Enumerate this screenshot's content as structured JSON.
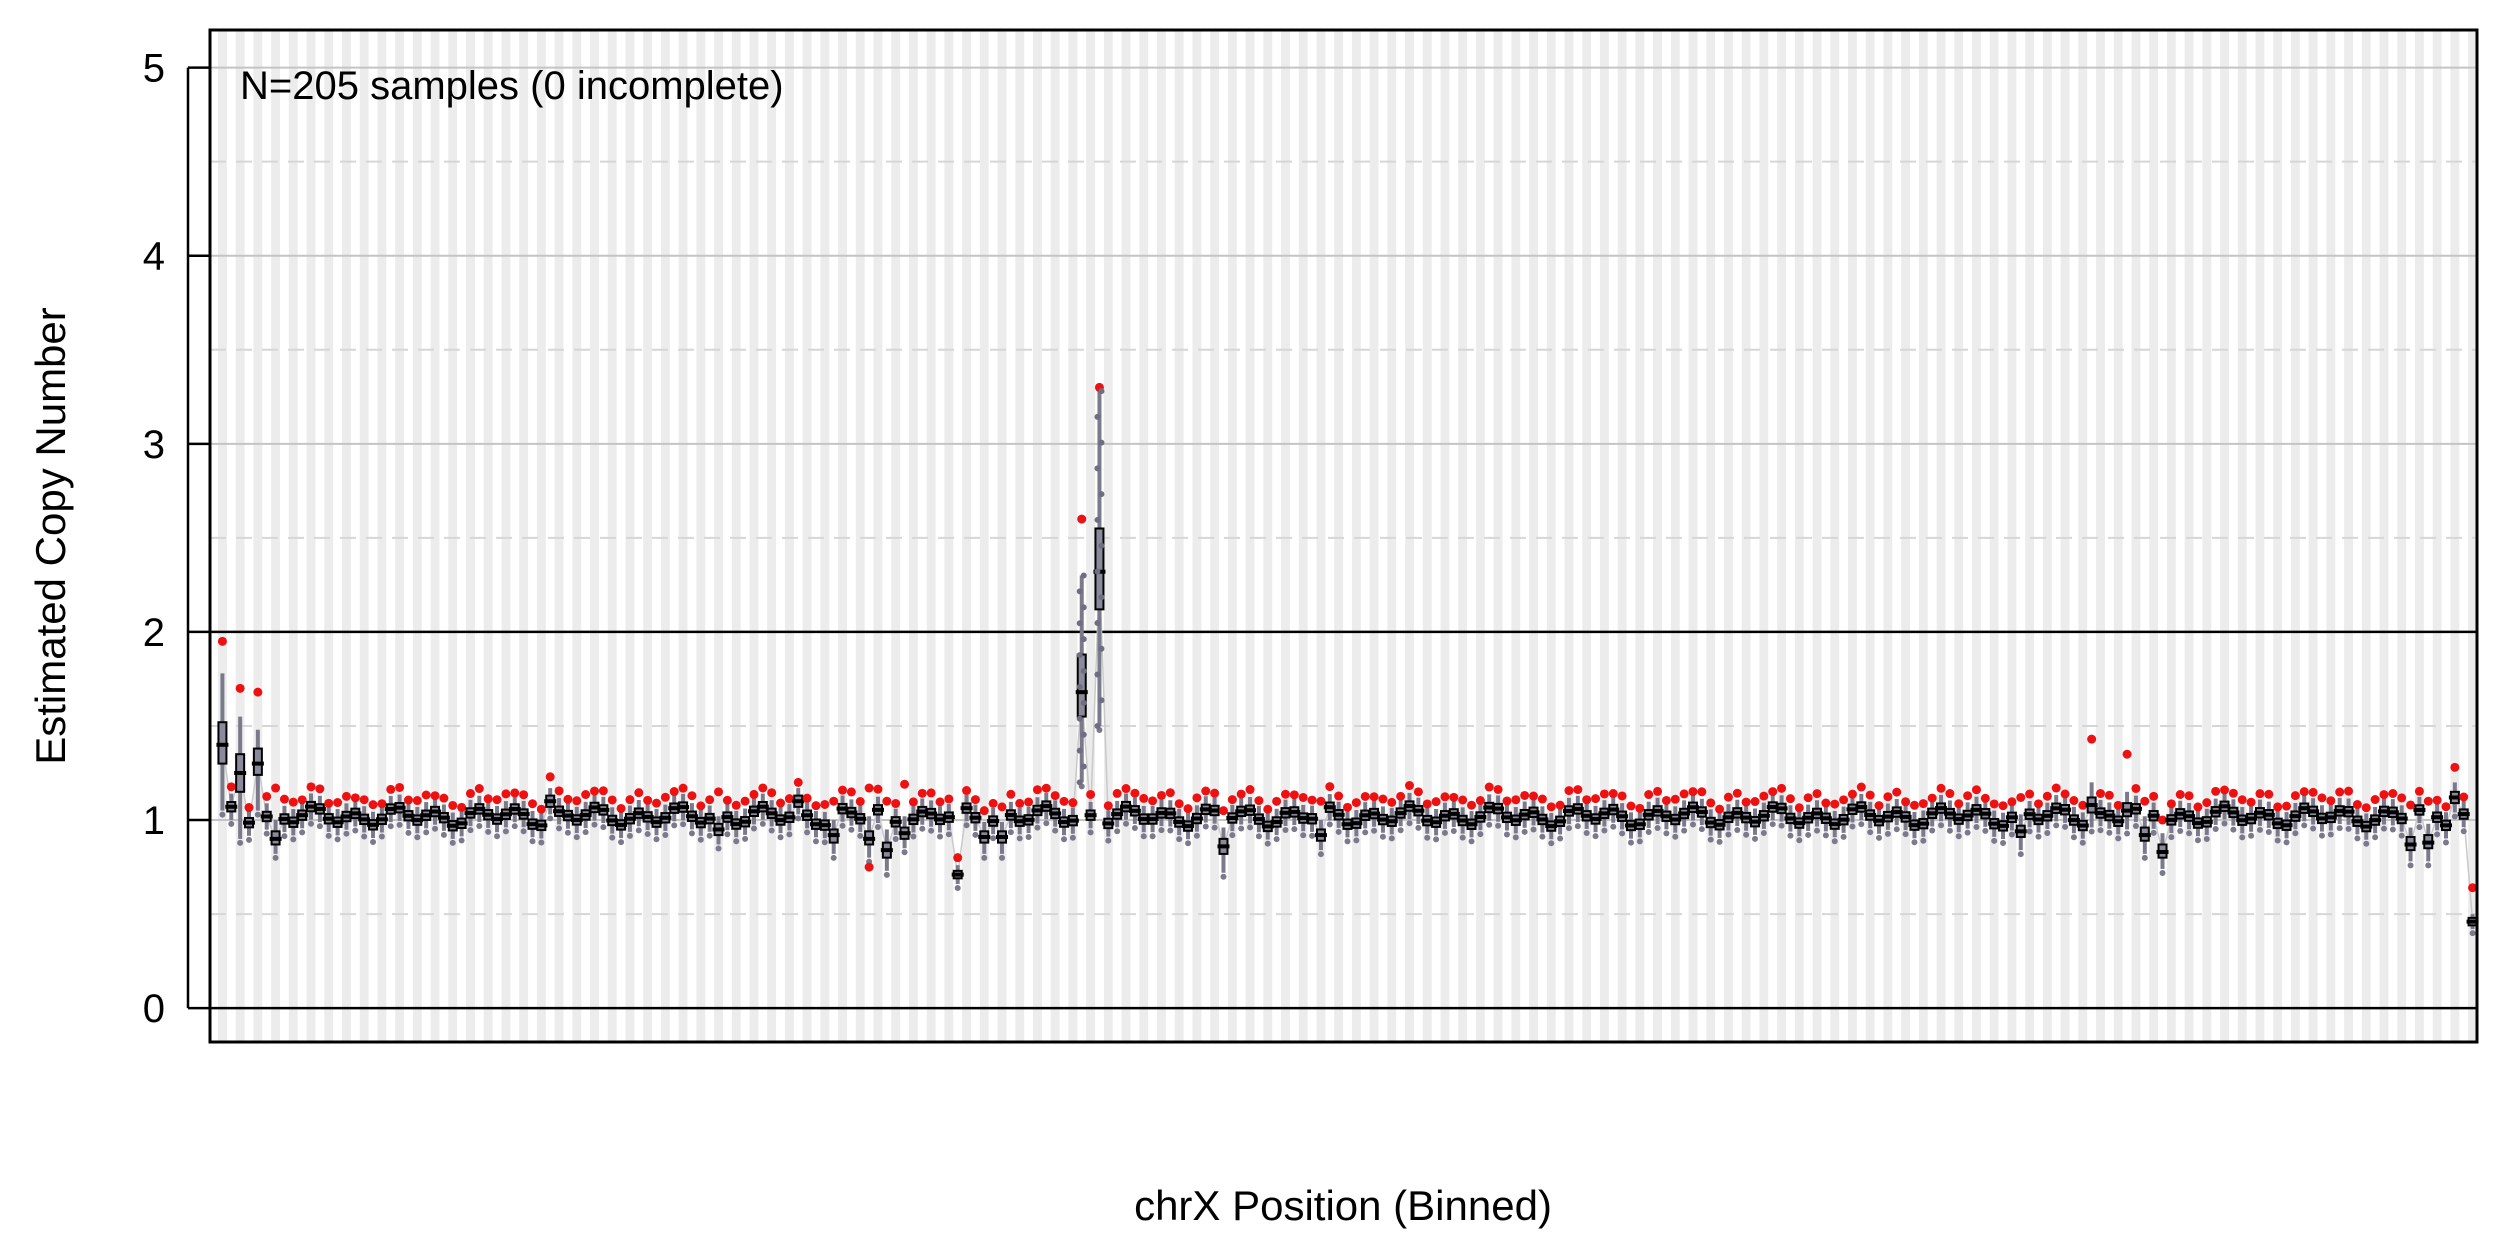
{
  "chart_data": {
    "type": "box",
    "title": "",
    "annotation": "N=205 samples (0 incomplete)",
    "xlabel": "chrX Position (Binned)",
    "ylabel": "Estimated Copy Number",
    "ylim": [
      -0.18,
      5.2
    ],
    "yticks": [
      0,
      1,
      2,
      3,
      4,
      5
    ],
    "reference_lines": [
      0,
      2
    ],
    "minor_gridlines": [
      0.5,
      1.5,
      2.5,
      3.5,
      4.5
    ],
    "n_bins": 255,
    "bins": [
      {
        "i": 0,
        "median": 1.4,
        "q1": 1.3,
        "q3": 1.52,
        "low": 1.05,
        "high": 1.78,
        "out_hi": 1.95
      },
      {
        "i": 2,
        "median": 1.25,
        "q1": 1.15,
        "q3": 1.35,
        "low": 0.9,
        "high": 1.55,
        "out_hi": 1.7
      },
      {
        "i": 4,
        "median": 1.3,
        "q1": 1.24,
        "q3": 1.38,
        "low": 1.05,
        "high": 1.48,
        "out_hi": 1.68
      },
      {
        "i": 6,
        "median": 0.9,
        "q1": 0.87,
        "q3": 0.94,
        "low": 0.82,
        "high": 1.0,
        "out_hi": 1.17
      },
      {
        "i": 37,
        "median": 1.1,
        "q1": 1.07,
        "q3": 1.13,
        "low": 1.03,
        "high": 1.17,
        "out_hi": 1.23
      },
      {
        "i": 56,
        "median": 0.95,
        "q1": 0.92,
        "q3": 0.98,
        "low": 0.87,
        "high": 1.02,
        "out_hi": 1.15
      },
      {
        "i": 65,
        "median": 1.1,
        "q1": 1.07,
        "q3": 1.13,
        "low": 1.03,
        "high": 1.17,
        "out_hi": 1.2
      },
      {
        "i": 69,
        "median": 0.92,
        "q1": 0.88,
        "q3": 0.95,
        "low": 0.82,
        "high": 1.0,
        "out_hi": 1.1
      },
      {
        "i": 73,
        "median": 0.9,
        "q1": 0.87,
        "q3": 0.94,
        "low": 0.8,
        "high": 1.02,
        "out_hi": 0.75,
        "out_hi2": 1.17
      },
      {
        "i": 75,
        "median": 0.84,
        "q1": 0.8,
        "q3": 0.88,
        "low": 0.73,
        "high": 0.95,
        "out_hi": 1.1
      },
      {
        "i": 77,
        "median": 0.93,
        "q1": 0.9,
        "q3": 0.96,
        "low": 0.85,
        "high": 1.02,
        "out_hi": 1.19
      },
      {
        "i": 83,
        "median": 0.71,
        "q1": 0.69,
        "q3": 0.73,
        "low": 0.66,
        "high": 0.76,
        "out_hi": 0.8
      },
      {
        "i": 86,
        "median": 0.91,
        "q1": 0.88,
        "q3": 0.94,
        "low": 0.82,
        "high": 0.99,
        "out_hi": 1.05
      },
      {
        "i": 88,
        "median": 0.91,
        "q1": 0.88,
        "q3": 0.94,
        "low": 0.82,
        "high": 0.99,
        "out_hi": 1.07
      },
      {
        "i": 97,
        "median": 1.68,
        "q1": 1.55,
        "q3": 1.88,
        "low": 1.2,
        "high": 2.3,
        "out_hi": 2.6
      },
      {
        "i": 99,
        "median": 2.32,
        "q1": 2.12,
        "q3": 2.55,
        "low": 1.5,
        "high": 3.28,
        "out_hi": 3.3
      },
      {
        "i": 113,
        "median": 0.86,
        "q1": 0.82,
        "q3": 0.9,
        "low": 0.72,
        "high": 0.96,
        "out_hi": 1.05
      },
      {
        "i": 124,
        "median": 0.92,
        "q1": 0.89,
        "q3": 0.95,
        "low": 0.84,
        "high": 1.0,
        "out_hi": 1.1
      },
      {
        "i": 203,
        "median": 0.94,
        "q1": 0.91,
        "q3": 0.97,
        "low": 0.84,
        "high": 1.03,
        "out_hi": 1.12
      },
      {
        "i": 211,
        "median": 1.08,
        "q1": 1.04,
        "q3": 1.12,
        "low": 0.96,
        "high": 1.2,
        "out_hi": 1.43
      },
      {
        "i": 215,
        "median": 1.05,
        "q1": 1.02,
        "q3": 1.09,
        "low": 0.95,
        "high": 1.15,
        "out_hi": 1.35
      },
      {
        "i": 217,
        "median": 0.92,
        "q1": 0.89,
        "q3": 0.96,
        "low": 0.82,
        "high": 1.02,
        "out_hi": 1.1
      },
      {
        "i": 219,
        "median": 0.83,
        "q1": 0.8,
        "q3": 0.87,
        "low": 0.74,
        "high": 0.93,
        "out_hi": 1.0
      },
      {
        "i": 247,
        "median": 0.87,
        "q1": 0.84,
        "q3": 0.91,
        "low": 0.78,
        "high": 0.96,
        "out_hi": 1.08
      },
      {
        "i": 249,
        "median": 0.88,
        "q1": 0.85,
        "q3": 0.92,
        "low": 0.78,
        "high": 0.98,
        "out_hi": 1.1
      },
      {
        "i": 252,
        "median": 1.12,
        "q1": 1.09,
        "q3": 1.15,
        "low": 1.04,
        "high": 1.2,
        "out_hi": 1.28
      },
      {
        "i": 254,
        "median": 0.46,
        "q1": 0.44,
        "q3": 0.48,
        "low": 0.42,
        "high": 0.5,
        "out_hi": 0.64
      }
    ],
    "default_level": 1.02
  }
}
